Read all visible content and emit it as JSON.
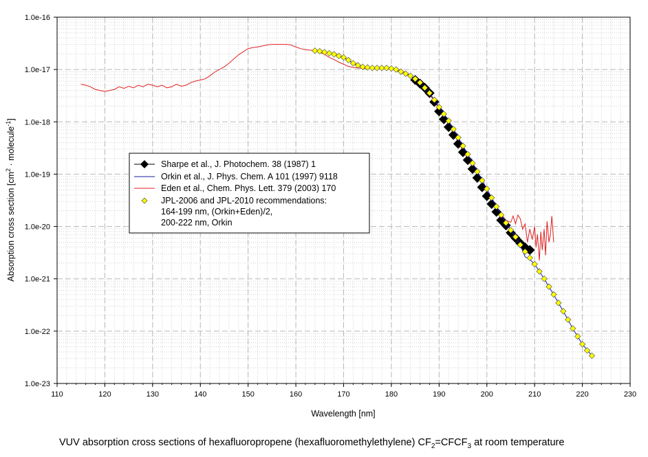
{
  "chart_data": {
    "type": "line",
    "title": "",
    "xlabel": "Wavelength [nm]",
    "ylabel_parts": [
      "Absorption cross section [cm",
      "2",
      " · molecule",
      "-1",
      "]"
    ],
    "xlim": [
      110,
      230
    ],
    "ylim_log10": [
      -23,
      -16
    ],
    "y_scale": "log",
    "grid": true,
    "x_ticks": [
      110,
      120,
      130,
      140,
      150,
      160,
      170,
      180,
      190,
      200,
      210,
      220,
      230
    ],
    "x_tick_labels": [
      "110",
      "120",
      "130",
      "140",
      "150",
      "160",
      "170",
      "180",
      "190",
      "200",
      "210",
      "220",
      "230"
    ],
    "y_ticks_log10": [
      -23,
      -22,
      -21,
      -20,
      -19,
      -18,
      -17,
      -16
    ],
    "y_tick_labels": [
      "1.0e-23",
      "1.0e-22",
      "1.0e-21",
      "1.0e-20",
      "1.0e-19",
      "1.0e-18",
      "1.0e-17",
      "1.0e-16"
    ],
    "legend_position": "middle-left",
    "series": [
      {
        "name": "Sharpe et al., J. Photochem. 38 (1987) 1",
        "color": "#000000",
        "marker": "diamond",
        "x": [
          185,
          186,
          187,
          188,
          189,
          190,
          191,
          192,
          193,
          194,
          195,
          196,
          197,
          198,
          199,
          200,
          201,
          202,
          203,
          204,
          205,
          206,
          207,
          208,
          209
        ],
        "y_log10": [
          -17.2,
          -17.27,
          -17.35,
          -17.45,
          -17.62,
          -17.8,
          -17.95,
          -18.1,
          -18.25,
          -18.42,
          -18.58,
          -18.73,
          -18.9,
          -19.07,
          -19.25,
          -19.42,
          -19.57,
          -19.72,
          -19.88,
          -19.98,
          -20.12,
          -20.22,
          -20.32,
          -20.4,
          -20.45
        ],
        "y_log10_note": ""
      },
      {
        "name": "Orkin et al., J. Phys. Chem. A 101 (1997) 9118",
        "color": "#1a1aa0",
        "marker": "none",
        "x": [
          164,
          166,
          168,
          170,
          172,
          174,
          176,
          178,
          180,
          182,
          184,
          186,
          188,
          190,
          192,
          194,
          196,
          198,
          200,
          202,
          204,
          206,
          207,
          208,
          209,
          210,
          212,
          214,
          216,
          218,
          220,
          222
        ],
        "y_log10": [
          -16.64,
          -16.67,
          -16.71,
          -16.77,
          -16.88,
          -16.95,
          -16.97,
          -16.97,
          -16.99,
          -17.05,
          -17.12,
          -17.25,
          -17.45,
          -17.72,
          -17.98,
          -18.3,
          -18.62,
          -18.95,
          -19.28,
          -19.62,
          -19.93,
          -20.2,
          -20.35,
          -20.58,
          -20.63,
          -20.72,
          -21.0,
          -21.3,
          -21.62,
          -21.95,
          -22.25,
          -22.47
        ]
      },
      {
        "name": "Eden et al., Chem. Phys. Lett. 379 (2003) 170",
        "color": "#e02020",
        "marker": "none",
        "x": [
          115,
          116,
          117,
          118,
          119,
          120,
          121,
          122,
          123,
          124,
          125,
          126,
          127,
          128,
          129,
          130,
          131,
          132,
          133,
          134,
          135,
          136,
          137,
          138,
          139,
          140,
          141,
          142,
          143,
          144,
          145,
          146,
          147,
          148,
          149,
          150,
          151,
          152,
          153,
          154,
          155,
          156,
          157,
          158,
          159,
          160,
          161,
          162,
          163,
          164,
          165,
          166,
          167,
          168,
          169,
          170,
          171,
          172,
          173,
          174,
          175,
          176,
          177,
          178,
          179,
          180,
          181,
          182,
          183,
          184,
          185,
          186,
          187,
          188,
          189,
          190,
          191,
          192,
          193,
          194,
          195,
          196,
          197,
          198,
          199,
          200,
          201,
          202,
          203,
          204,
          205,
          205.5,
          206,
          206.5,
          207,
          207.5,
          208,
          208.5,
          209,
          209.5,
          210,
          210.3,
          210.6,
          211,
          211.3,
          211.6,
          212,
          212.3,
          212.6,
          213,
          213.3,
          213.6,
          214
        ],
        "y_log10": [
          -17.28,
          -17.3,
          -17.33,
          -17.38,
          -17.4,
          -17.42,
          -17.4,
          -17.38,
          -17.33,
          -17.36,
          -17.32,
          -17.35,
          -17.3,
          -17.33,
          -17.28,
          -17.3,
          -17.33,
          -17.3,
          -17.35,
          -17.33,
          -17.28,
          -17.32,
          -17.3,
          -17.25,
          -17.22,
          -17.2,
          -17.18,
          -17.12,
          -17.05,
          -17.0,
          -16.95,
          -16.88,
          -16.8,
          -16.72,
          -16.66,
          -16.6,
          -16.58,
          -16.57,
          -16.55,
          -16.53,
          -16.52,
          -16.52,
          -16.52,
          -16.52,
          -16.53,
          -16.57,
          -16.6,
          -16.62,
          -16.63,
          -16.64,
          -16.67,
          -16.71,
          -16.77,
          -16.81,
          -16.86,
          -16.9,
          -16.94,
          -16.96,
          -16.97,
          -16.98,
          -16.98,
          -16.97,
          -16.98,
          -16.97,
          -16.98,
          -16.98,
          -17.0,
          -17.02,
          -17.06,
          -17.12,
          -17.18,
          -17.25,
          -17.35,
          -17.48,
          -17.6,
          -17.75,
          -17.9,
          -18.05,
          -18.22,
          -18.38,
          -18.55,
          -18.7,
          -18.85,
          -19.0,
          -19.17,
          -19.33,
          -19.48,
          -19.62,
          -19.77,
          -19.88,
          -19.92,
          -19.8,
          -19.95,
          -19.78,
          -19.85,
          -20.05,
          -19.95,
          -20.3,
          -20.05,
          -20.25,
          -20.0,
          -20.4,
          -20.15,
          -20.65,
          -20.1,
          -20.45,
          -20.05,
          -20.55,
          -19.9,
          -20.3,
          -20.15,
          -19.8,
          -20.3
        ]
      },
      {
        "name": "JPL-2006 and JPL-2010  recommendations:",
        "name_lines": [
          "164-199 nm, (Orkin+Eden)/2,",
          "200-222 nm, Orkin"
        ],
        "color": "#ffff00",
        "marker": "diamond",
        "x": [
          164,
          165,
          166,
          167,
          168,
          169,
          170,
          171,
          172,
          173,
          174,
          175,
          176,
          177,
          178,
          179,
          180,
          181,
          182,
          183,
          184,
          185,
          186,
          187,
          188,
          189,
          190,
          191,
          192,
          193,
          194,
          195,
          196,
          197,
          198,
          199,
          200,
          201,
          202,
          203,
          204,
          205,
          206,
          207,
          208,
          209,
          210,
          211,
          212,
          213,
          214,
          215,
          216,
          217,
          218,
          219,
          220,
          221,
          222
        ],
        "y_log10": [
          -16.64,
          -16.65,
          -16.67,
          -16.69,
          -16.71,
          -16.74,
          -16.77,
          -16.82,
          -16.88,
          -16.92,
          -16.95,
          -16.96,
          -16.97,
          -16.97,
          -16.97,
          -16.97,
          -16.98,
          -17.0,
          -17.04,
          -17.08,
          -17.12,
          -17.18,
          -17.25,
          -17.35,
          -17.45,
          -17.58,
          -17.72,
          -17.85,
          -17.98,
          -18.14,
          -18.3,
          -18.46,
          -18.62,
          -18.79,
          -18.95,
          -19.12,
          -19.28,
          -19.45,
          -19.62,
          -19.78,
          -19.93,
          -20.07,
          -20.2,
          -20.35,
          -20.48,
          -20.6,
          -20.72,
          -20.86,
          -21.0,
          -21.15,
          -21.3,
          -21.46,
          -21.62,
          -21.78,
          -21.95,
          -22.1,
          -22.25,
          -22.37,
          -22.47
        ]
      }
    ]
  },
  "caption": {
    "part1": "VUV absorption cross sections of hexafluoropropene (hexafluoromethylethylene) CF",
    "sub1": "2",
    "part2": "=CFCF",
    "sub2": "3",
    "part3": " at room temperature"
  }
}
